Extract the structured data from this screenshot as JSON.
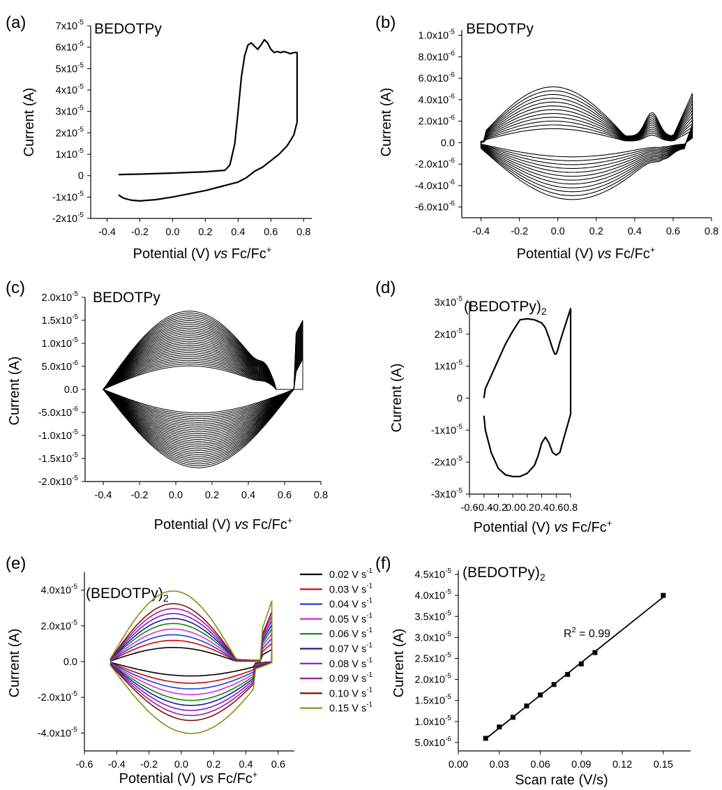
{
  "figure": {
    "panels": [
      {
        "panel_label": "(a)",
        "label_text": "BEDOTPy",
        "label_sub": "",
        "xlabel_prefix": "Potential (V) ",
        "xlabel_italic": "vs",
        "xlabel_suffix": " Fc/Fc",
        "xlabel_sup": "+",
        "ylabel": "Current (A)",
        "xticks": [
          "-0.4",
          "-0.2",
          "0.0",
          "0.2",
          "0.4",
          "0.6",
          "0.8"
        ],
        "yticks": [
          {
            "m": "-2x10",
            "e": "-5"
          },
          {
            "m": "-1x10",
            "e": "-5"
          },
          {
            "m": "0",
            "e": ""
          },
          {
            "m": "1x10",
            "e": "-5"
          },
          {
            "m": "2x10",
            "e": "-5"
          },
          {
            "m": "3x10",
            "e": "-5"
          },
          {
            "m": "4x10",
            "e": "-5"
          },
          {
            "m": "5x10",
            "e": "-5"
          },
          {
            "m": "6x10",
            "e": "-5"
          },
          {
            "m": "7x10",
            "e": "-5"
          }
        ]
      },
      {
        "panel_label": "(b)",
        "label_text": "BEDOTPy",
        "label_sub": "",
        "xlabel_prefix": "Potential (V) ",
        "xlabel_italic": "vs",
        "xlabel_suffix": " Fc/Fc",
        "xlabel_sup": "+",
        "ylabel": "Current (A)",
        "xticks": [
          "-0.4",
          "-0.2",
          "0.0",
          "0.2",
          "0.4",
          "0.6",
          "0.8"
        ],
        "yticks": [
          {
            "m": "-6.0x10",
            "e": "-6"
          },
          {
            "m": "-4.0x10",
            "e": "-6"
          },
          {
            "m": "-2.0x10",
            "e": "-6"
          },
          {
            "m": "0.0",
            "e": ""
          },
          {
            "m": "2.0x10",
            "e": "-6"
          },
          {
            "m": "4.0x10",
            "e": "-6"
          },
          {
            "m": "6.0x10",
            "e": "-6"
          },
          {
            "m": "8.0x10",
            "e": "-6"
          },
          {
            "m": "1.0x10",
            "e": "-5"
          }
        ]
      },
      {
        "panel_label": "(c)",
        "label_text": "BEDOTPy",
        "label_sub": "",
        "xlabel_prefix": "Potential (V) ",
        "xlabel_italic": "vs",
        "xlabel_suffix": " Fc/Fc",
        "xlabel_sup": "+",
        "ylabel": "Current (A)",
        "xticks": [
          "-0.4",
          "-0.2",
          "0.0",
          "0.2",
          "0.4",
          "0.6",
          "0.8"
        ],
        "yticks": [
          {
            "m": "-2.0x10",
            "e": "-5"
          },
          {
            "m": "-1.5x10",
            "e": "-5"
          },
          {
            "m": "-1.0x10",
            "e": "-5"
          },
          {
            "m": "-5.0x10",
            "e": "-6"
          },
          {
            "m": "0.0",
            "e": ""
          },
          {
            "m": "5.0x10",
            "e": "-6"
          },
          {
            "m": "1.0x10",
            "e": "-5"
          },
          {
            "m": "1.5x10",
            "e": "-5"
          },
          {
            "m": "2.0x10",
            "e": "-5"
          }
        ]
      },
      {
        "panel_label": "(d)",
        "label_text": "(BEDOTPy)",
        "label_sub": "2",
        "xlabel_prefix": "Potential (V) ",
        "xlabel_italic": "vs",
        "xlabel_suffix": " Fc/Fc",
        "xlabel_sup": "+",
        "ylabel": "Current (A)",
        "xticks": [
          "-0.6",
          "-0.4",
          "-0.2",
          "0.0",
          "0.2",
          "0.4",
          "0.6",
          "0.8"
        ],
        "yticks": [
          {
            "m": "-3x10",
            "e": "-5"
          },
          {
            "m": "-2x10",
            "e": "-5"
          },
          {
            "m": "-1x10",
            "e": "-5"
          },
          {
            "m": "0",
            "e": ""
          },
          {
            "m": "1x10",
            "e": "-5"
          },
          {
            "m": "2x10",
            "e": "-5"
          },
          {
            "m": "3x10",
            "e": "-5"
          }
        ]
      },
      {
        "panel_label": "(e)",
        "label_text": "(BEDOTPy)",
        "label_sub": "2",
        "xlabel_prefix": "Potential (V) ",
        "xlabel_italic": "vs",
        "xlabel_suffix": " Fc/Fc",
        "xlabel_sup": "+",
        "ylabel": "Current (A)",
        "xticks": [
          "-0.6",
          "-0.4",
          "-0.2",
          "0.0",
          "0.2",
          "0.4",
          "0.6"
        ],
        "yticks": [
          {
            "m": "-4.0x10",
            "e": "-5"
          },
          {
            "m": "-2.0x10",
            "e": "-5"
          },
          {
            "m": "0.0",
            "e": ""
          },
          {
            "m": "2.0x10",
            "e": "-5"
          },
          {
            "m": "4.0x10",
            "e": "-5"
          }
        ],
        "legend": [
          {
            "v": "0.02 V s",
            "e": "-1"
          },
          {
            "v": "0.03 V s",
            "e": "-1"
          },
          {
            "v": "0.04 V s",
            "e": "-1"
          },
          {
            "v": "0.05 V s",
            "e": "-1"
          },
          {
            "v": "0.06 V s",
            "e": "-1"
          },
          {
            "v": "0.07 V s",
            "e": "-1"
          },
          {
            "v": "0.08 V s",
            "e": "-1"
          },
          {
            "v": "0.09 V s",
            "e": "-1"
          },
          {
            "v": "0.10 V s",
            "e": "-1"
          },
          {
            "v": "0.15 V s",
            "e": "-1"
          }
        ]
      },
      {
        "panel_label": "(f)",
        "label_text": "(BEDOTPy)",
        "label_sub": "2",
        "xlabel_prefix": "Scan rate (V/s)",
        "xlabel_italic": "",
        "xlabel_suffix": "",
        "xlabel_sup": "",
        "ylabel": "Current (A)",
        "xticks": [
          "0.00",
          "0.03",
          "0.06",
          "0.09",
          "0.12",
          "0.15"
        ],
        "yticks": [
          {
            "m": "5.0x10",
            "e": "-6"
          },
          {
            "m": "1.0x10",
            "e": "-5"
          },
          {
            "m": "1.5x10",
            "e": "-5"
          },
          {
            "m": "2.0x10",
            "e": "-5"
          },
          {
            "m": "2.5x10",
            "e": "-5"
          },
          {
            "m": "3.0x10",
            "e": "-5"
          },
          {
            "m": "3.5x10",
            "e": "-5"
          },
          {
            "m": "4.0x10",
            "e": "-5"
          },
          {
            "m": "4.5x10",
            "e": "-5"
          }
        ],
        "annotation": {
          "r": "R",
          "sup": "2",
          "rest": " = 0.99"
        }
      }
    ]
  },
  "chart_data": [
    {
      "panel": "(a)",
      "type": "line",
      "xlabel": "Potential (V) vs Fc/Fc+",
      "ylabel": "Current (A)",
      "xlim": [
        -0.5,
        0.85
      ],
      "ylim": [
        -2e-05,
        7e-05
      ],
      "series": [
        {
          "x": [
            -0.33,
            -0.2,
            0,
            0.2,
            0.32,
            0.35,
            0.38,
            0.4,
            0.42,
            0.44,
            0.46,
            0.48,
            0.5,
            0.52,
            0.54,
            0.56,
            0.58,
            0.6,
            0.62,
            0.64,
            0.66,
            0.68,
            0.7,
            0.72,
            0.74,
            0.76,
            0.76,
            0.74,
            0.7,
            0.65,
            0.6,
            0.55,
            0.5,
            0.45,
            0.4,
            0.35,
            0.3,
            0.2,
            0.1,
            0.0,
            -0.1,
            -0.2,
            -0.25,
            -0.3,
            -0.33
          ],
          "y": [
            5e-07,
            7e-07,
            1.2e-06,
            1.8e-06,
            2.5e-06,
            5e-06,
            1.5e-05,
            3e-05,
            4.6e-05,
            5.6e-05,
            6.1e-05,
            6.2e-05,
            6.05e-05,
            5.9e-05,
            6.1e-05,
            6.35e-05,
            6.2e-05,
            5.9e-05,
            5.75e-05,
            5.8e-05,
            5.75e-05,
            5.8e-05,
            5.75e-05,
            5.7e-05,
            5.75e-05,
            5.75e-05,
            2.5e-05,
            1.9e-05,
            1.4e-05,
            1e-05,
            7e-06,
            4e-06,
            2e-06,
            -1e-06,
            -3e-06,
            -4e-06,
            -5e-06,
            -7e-06,
            -8.5e-06,
            -1e-05,
            -1.12e-05,
            -1.18e-05,
            -1.15e-05,
            -1.05e-05,
            -9e-06
          ]
        }
      ]
    },
    {
      "panel": "(b)",
      "type": "line",
      "xlabel": "Potential (V) vs Fc/Fc+",
      "ylabel": "Current (A)",
      "xlim": [
        -0.5,
        0.8
      ],
      "ylim": [
        -7e-06,
        1.05e-05
      ],
      "series_count": 12,
      "envelope": {
        "upper_max": 5.2e-06,
        "lower_min": -5.3e-06,
        "anodic_peak_V": 0.49,
        "turn_V": [
          -0.4,
          0.7
        ]
      }
    },
    {
      "panel": "(c)",
      "type": "line",
      "xlabel": "Potential (V) vs Fc/Fc+",
      "ylabel": "Current (A)",
      "xlim": [
        -0.5,
        0.8
      ],
      "ylim": [
        -2e-05,
        2e-05
      ],
      "series_count": 30,
      "envelope": {
        "upper_max": 1.7e-05,
        "lower_min": -1.7e-05,
        "anodic_peak_V": 0.5,
        "turn_V": [
          -0.4,
          0.7
        ]
      }
    },
    {
      "panel": "(d)",
      "type": "line",
      "xlabel": "Potential (V) vs Fc/Fc+",
      "ylabel": "Current (A)",
      "xlim": [
        -0.6,
        0.8
      ],
      "ylim": [
        -3e-05,
        3e-05
      ],
      "series": [
        {
          "x": [
            -0.4,
            -0.38,
            -0.3,
            -0.2,
            -0.1,
            0.0,
            0.1,
            0.2,
            0.3,
            0.4,
            0.45,
            0.5,
            0.55,
            0.58,
            0.6,
            0.62,
            0.65,
            0.7,
            0.75,
            0.8,
            0.8,
            0.75,
            0.7,
            0.65,
            0.6,
            0.55,
            0.5,
            0.45,
            0.4,
            0.35,
            0.3,
            0.2,
            0.1,
            0.0,
            -0.1,
            -0.2,
            -0.3,
            -0.38,
            -0.4
          ],
          "y": [
            0.0,
            3e-06,
            7e-06,
            1.2e-05,
            1.7e-05,
            2.1e-05,
            2.45e-05,
            2.48e-05,
            2.45e-05,
            2.35e-05,
            2.2e-05,
            1.9e-05,
            1.55e-05,
            1.38e-05,
            1.38e-05,
            1.5e-05,
            1.75e-05,
            2.1e-05,
            2.45e-05,
            2.8e-05,
            -5e-06,
            -9e-06,
            -1.3e-05,
            -1.7e-05,
            -1.78e-05,
            -1.7e-05,
            -1.4e-05,
            -1.22e-05,
            -1.4e-05,
            -1.8e-05,
            -2.1e-05,
            -2.35e-05,
            -2.45e-05,
            -2.45e-05,
            -2.4e-05,
            -2.2e-05,
            -1.7e-05,
            -1e-05,
            -5.5e-06
          ]
        }
      ]
    },
    {
      "panel": "(e)",
      "type": "line",
      "xlabel": "Potential (V) vs Fc/Fc+",
      "ylabel": "Current (A)",
      "xlim": [
        -0.6,
        0.7
      ],
      "ylim": [
        -5e-05,
        5e-05
      ],
      "legend_position": "right",
      "series": [
        {
          "name": "0.02 V s-1",
          "color": "#000000",
          "scale": 0.2
        },
        {
          "name": "0.03 V s-1",
          "color": "#d40000",
          "scale": 0.3
        },
        {
          "name": "0.04 V s-1",
          "color": "#1a3fe0",
          "scale": 0.38
        },
        {
          "name": "0.05 V s-1",
          "color": "#e02ae0",
          "scale": 0.46
        },
        {
          "name": "0.06 V s-1",
          "color": "#0a8a0a",
          "scale": 0.54
        },
        {
          "name": "0.07 V s-1",
          "color": "#1a1a90",
          "scale": 0.61
        },
        {
          "name": "0.08 V s-1",
          "color": "#7a1ad8",
          "scale": 0.68
        },
        {
          "name": "0.09 V s-1",
          "color": "#a01a9a",
          "scale": 0.75
        },
        {
          "name": "0.10 V s-1",
          "color": "#7a1010",
          "scale": 0.82
        },
        {
          "name": "0.15 V s-1",
          "color": "#8b8b14",
          "scale": 1.0
        }
      ],
      "max_current_015": 4e-05,
      "min_current_015": -3.9e-05
    },
    {
      "panel": "(f)",
      "type": "scatter",
      "xlabel": "Scan rate (V/s)",
      "ylabel": "Current (A)",
      "xlim": [
        0.0,
        0.17
      ],
      "ylim": [
        3e-06,
        4.5e-05
      ],
      "x": [
        0.02,
        0.03,
        0.04,
        0.05,
        0.06,
        0.07,
        0.08,
        0.09,
        0.1,
        0.15
      ],
      "y": [
        6e-06,
        8.7e-06,
        1.1e-05,
        1.37e-05,
        1.63e-05,
        1.88e-05,
        2.12e-05,
        2.37e-05,
        2.64e-05,
        4e-05
      ],
      "fit": {
        "type": "linear",
        "r2": 0.99
      }
    }
  ]
}
